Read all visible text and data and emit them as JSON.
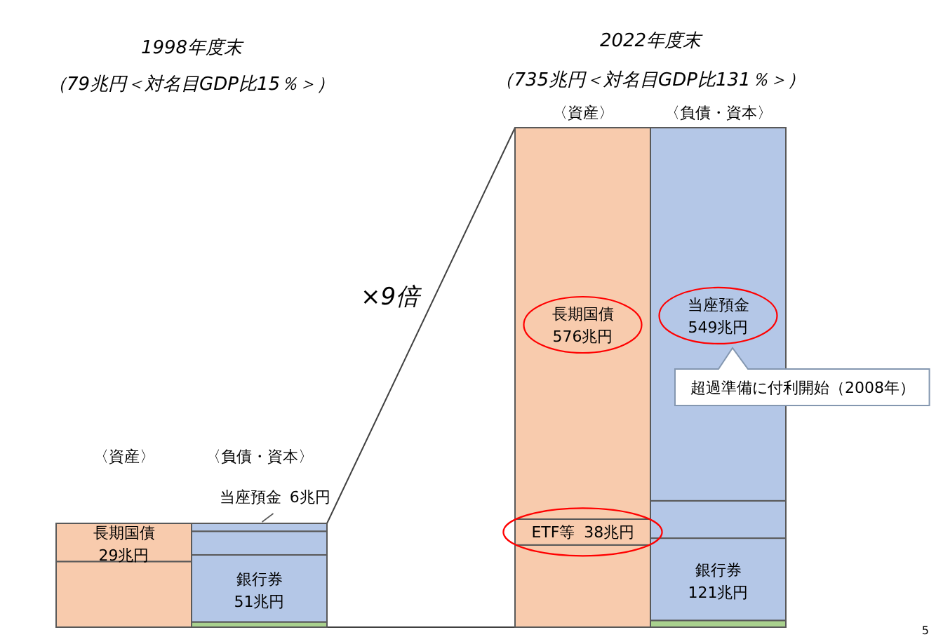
{
  "chart_data": [
    {
      "type": "bar",
      "title": "1998年度末",
      "subtitle": "（79兆円＜対名目GDP比15％＞）",
      "categories": [
        "〈資産〉",
        "〈負債・資本〉"
      ],
      "stacked": true,
      "series": [
        {
          "color": "#f8cbad",
          "values": [
            50,
            null
          ]
        },
        {
          "name": "長期国債",
          "color": "#f8cbad",
          "values": [
            29,
            null
          ],
          "value_labels": [
            "29兆円",
            null
          ]
        },
        {
          "color": "#a9d18e",
          "values": [
            null,
            4
          ]
        },
        {
          "name": "銀行券",
          "color": "#b4c7e7",
          "values": [
            null,
            51
          ],
          "value_labels": [
            null,
            "51兆円"
          ]
        },
        {
          "color": "#b4c7e7",
          "values": [
            null,
            18
          ]
        },
        {
          "name": "当座預金",
          "color": "#b4c7e7",
          "values": [
            null,
            6
          ],
          "value_labels": [
            null,
            "6兆円"
          ]
        }
      ]
    },
    {
      "type": "bar",
      "title": "2022年度末",
      "subtitle": "（735兆円＜対名目GDP比131％＞）",
      "categories": [
        "〈資産〉",
        "〈負債・資本〉"
      ],
      "stacked": true,
      "series": [
        {
          "color": "#f8cbad",
          "values": [
            121,
            null
          ]
        },
        {
          "name": "ETF等",
          "color": "#f8cbad",
          "values": [
            38,
            null
          ],
          "value_labels": [
            "38兆円",
            null
          ]
        },
        {
          "name": "長期国債",
          "color": "#f8cbad",
          "values": [
            576,
            null
          ],
          "value_labels": [
            "576兆円",
            null
          ]
        },
        {
          "color": "#a9d18e",
          "values": [
            null,
            10
          ]
        },
        {
          "name": "銀行券",
          "color": "#b4c7e7",
          "values": [
            null,
            121
          ],
          "value_labels": [
            null,
            "121兆円"
          ]
        },
        {
          "color": "#b4c7e7",
          "values": [
            null,
            55
          ]
        },
        {
          "name": "当座預金",
          "color": "#b4c7e7",
          "values": [
            null,
            549
          ],
          "value_labels": [
            null,
            "549兆円"
          ]
        }
      ],
      "annotations": [
        "×9倍",
        "超過準備に付利開始（2008年）",
        "5"
      ]
    }
  ]
}
